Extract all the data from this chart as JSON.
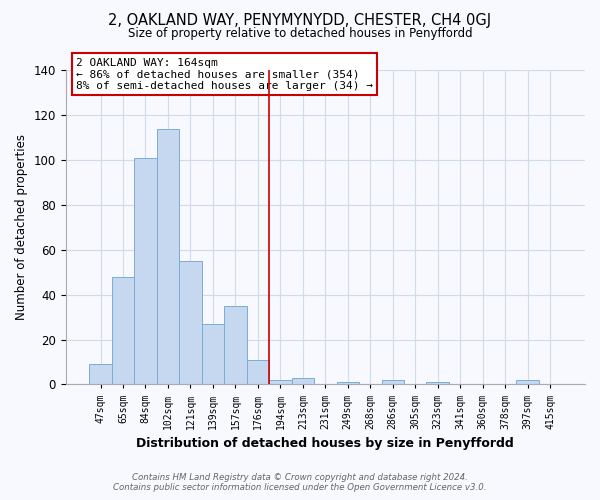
{
  "title": "2, OAKLAND WAY, PENYMYNYDD, CHESTER, CH4 0GJ",
  "subtitle": "Size of property relative to detached houses in Penyffordd",
  "xlabel": "Distribution of detached houses by size in Penyffordd",
  "ylabel": "Number of detached properties",
  "bar_labels": [
    "47sqm",
    "65sqm",
    "84sqm",
    "102sqm",
    "121sqm",
    "139sqm",
    "157sqm",
    "176sqm",
    "194sqm",
    "213sqm",
    "231sqm",
    "249sqm",
    "268sqm",
    "286sqm",
    "305sqm",
    "323sqm",
    "341sqm",
    "360sqm",
    "378sqm",
    "397sqm",
    "415sqm"
  ],
  "bar_values": [
    9,
    48,
    101,
    114,
    55,
    27,
    35,
    11,
    2,
    3,
    0,
    1,
    0,
    2,
    0,
    1,
    0,
    0,
    0,
    2,
    0
  ],
  "bar_color": "#c5d8f0",
  "bar_edge_color": "#7aadd4",
  "vline_x": 7.5,
  "vline_color": "#cc0000",
  "ylim": [
    0,
    140
  ],
  "yticks": [
    0,
    20,
    40,
    60,
    80,
    100,
    120,
    140
  ],
  "annotation_title": "2 OAKLAND WAY: 164sqm",
  "annotation_line1": "← 86% of detached houses are smaller (354)",
  "annotation_line2": "8% of semi-detached houses are larger (34) →",
  "annotation_box_color": "#ffffff",
  "annotation_box_edge": "#cc0000",
  "footer1": "Contains HM Land Registry data © Crown copyright and database right 2024.",
  "footer2": "Contains public sector information licensed under the Open Government Licence v3.0.",
  "background_color": "#f8f8ff",
  "grid_color": "#d0dce8"
}
